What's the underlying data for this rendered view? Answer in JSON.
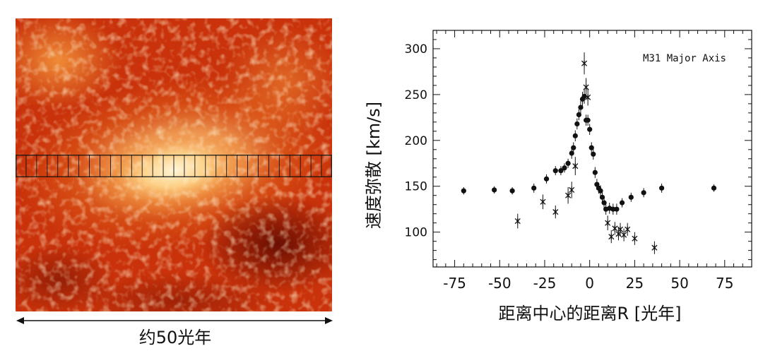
{
  "scale_label": "约50光年",
  "chart_data": {
    "type": "scatter",
    "title": "",
    "annotation": "M31 Major Axis",
    "xlabel": "距离中心的距离R [光年]",
    "ylabel": "速度弥散 [km/s]",
    "xlim": [
      -87,
      90
    ],
    "ylim": [
      62,
      320
    ],
    "x_ticks": [
      -75,
      -50,
      -25,
      0,
      25,
      50,
      75
    ],
    "x_tick_labels": [
      "-75",
      "-50",
      "-25",
      "0",
      "25",
      "50",
      "75"
    ],
    "y_ticks": [
      100,
      150,
      200,
      250,
      300
    ],
    "y_tick_labels": [
      "100",
      "150",
      "200",
      "250",
      "300"
    ],
    "grid": false,
    "series": [
      {
        "marker": "circle",
        "points": [
          {
            "x": -70,
            "y": 145,
            "err": 4
          },
          {
            "x": -53,
            "y": 146,
            "err": 4
          },
          {
            "x": -43,
            "y": 145,
            "err": 4
          },
          {
            "x": -31,
            "y": 148,
            "err": 5
          },
          {
            "x": -24,
            "y": 158,
            "err": 5
          },
          {
            "x": -19,
            "y": 167,
            "err": 5
          },
          {
            "x": -16,
            "y": 167,
            "err": 5
          },
          {
            "x": -14,
            "y": 170,
            "err": 5
          },
          {
            "x": -12,
            "y": 175,
            "err": 5
          },
          {
            "x": -10,
            "y": 186,
            "err": 6
          },
          {
            "x": -9,
            "y": 192,
            "err": 6
          },
          {
            "x": -8,
            "y": 205,
            "err": 6
          },
          {
            "x": -7,
            "y": 218,
            "err": 6
          },
          {
            "x": -6,
            "y": 228,
            "err": 6
          },
          {
            "x": -5,
            "y": 236,
            "err": 7
          },
          {
            "x": -4,
            "y": 245,
            "err": 8
          },
          {
            "x": -3,
            "y": 248,
            "err": 8
          },
          {
            "x": -2,
            "y": 222,
            "err": 6
          },
          {
            "x": -1,
            "y": 222,
            "err": 6
          },
          {
            "x": 0,
            "y": 212,
            "err": 6
          },
          {
            "x": 1,
            "y": 192,
            "err": 6
          },
          {
            "x": 2,
            "y": 185,
            "err": 6
          },
          {
            "x": 3,
            "y": 165,
            "err": 6
          },
          {
            "x": 4,
            "y": 152,
            "err": 6
          },
          {
            "x": 5,
            "y": 148,
            "err": 6
          },
          {
            "x": 6,
            "y": 145,
            "err": 6
          },
          {
            "x": 7,
            "y": 138,
            "err": 6
          },
          {
            "x": 8,
            "y": 132,
            "err": 6
          },
          {
            "x": 9,
            "y": 125,
            "err": 6
          },
          {
            "x": 11,
            "y": 126,
            "err": 6
          },
          {
            "x": 13,
            "y": 125,
            "err": 6
          },
          {
            "x": 15,
            "y": 125,
            "err": 6
          },
          {
            "x": 18,
            "y": 132,
            "err": 5
          },
          {
            "x": 23,
            "y": 138,
            "err": 5
          },
          {
            "x": 30,
            "y": 143,
            "err": 5
          },
          {
            "x": 40,
            "y": 148,
            "err": 5
          },
          {
            "x": 69,
            "y": 148,
            "err": 4
          }
        ]
      },
      {
        "marker": "star",
        "points": [
          {
            "x": -40,
            "y": 112,
            "err": 8
          },
          {
            "x": -26,
            "y": 133,
            "err": 8
          },
          {
            "x": -19,
            "y": 122,
            "err": 7
          },
          {
            "x": -12,
            "y": 140,
            "err": 9
          },
          {
            "x": -10,
            "y": 146,
            "err": 9
          },
          {
            "x": -8,
            "y": 172,
            "err": 10
          },
          {
            "x": -3,
            "y": 284,
            "err": 12
          },
          {
            "x": -2,
            "y": 258,
            "err": 10
          },
          {
            "x": -1,
            "y": 247,
            "err": 9
          },
          {
            "x": 10,
            "y": 110,
            "err": 8
          },
          {
            "x": 12,
            "y": 95,
            "err": 7
          },
          {
            "x": 14,
            "y": 104,
            "err": 7
          },
          {
            "x": 16,
            "y": 98,
            "err": 7
          },
          {
            "x": 17,
            "y": 103,
            "err": 7
          },
          {
            "x": 19,
            "y": 97,
            "err": 7
          },
          {
            "x": 21,
            "y": 103,
            "err": 7
          },
          {
            "x": 25,
            "y": 93,
            "err": 7
          },
          {
            "x": 36,
            "y": 83,
            "err": 7
          }
        ]
      }
    ]
  },
  "image_colors": {
    "dark": "#7a0d03",
    "mid": "#d23a0c",
    "bright": "#f58a2a",
    "core": "#fff2cc"
  }
}
